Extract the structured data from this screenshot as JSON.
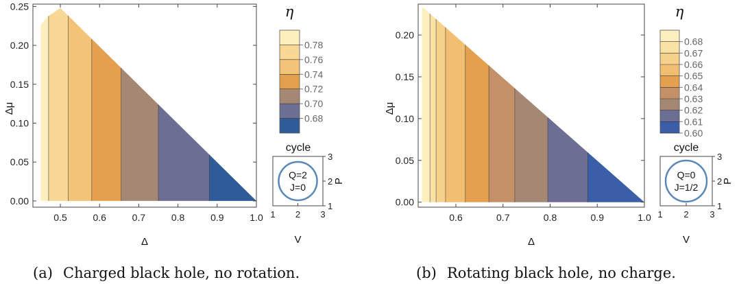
{
  "chart_data": [
    {
      "type": "contour",
      "panel_label": "(a)",
      "caption": "Charged black hole, no rotation.",
      "xlabel": "Δ",
      "ylabel": "Δμ",
      "xlim": [
        0.43,
        1.0
      ],
      "ylim": [
        -0.008,
        0.253
      ],
      "x_ticks": [
        "0.5",
        "0.6",
        "0.7",
        "0.8",
        "0.9",
        "1.0"
      ],
      "y_ticks": [
        "0.00",
        "0.05",
        "0.10",
        "0.15",
        "0.20",
        "0.25"
      ],
      "boundary": [
        [
          0.45,
          0.0
        ],
        [
          0.45,
          0.226
        ],
        [
          0.465,
          0.236
        ],
        [
          0.5,
          0.248
        ],
        [
          1.0,
          0.0
        ]
      ],
      "contour_x": [
        0.47,
        0.52,
        0.58,
        0.655,
        0.75,
        0.88
      ],
      "band_colors": [
        "#fdf0be",
        "#f8d894",
        "#f3c377",
        "#e4a04e",
        "#a58874",
        "#6c6f93",
        "#2f5b98"
      ],
      "legend": {
        "title": "η",
        "labels": [
          "0.78",
          "0.76",
          "0.74",
          "0.72",
          "0.70",
          "0.68"
        ],
        "colors": [
          "#fdf0be",
          "#f8d894",
          "#f3c377",
          "#e4a04e",
          "#a58874",
          "#6c6f93",
          "#2f5b98"
        ]
      },
      "inset": {
        "title": "cycle",
        "xlabel": "V",
        "ylabel": "P",
        "x_ticks": [
          "1",
          "2",
          "3"
        ],
        "y_ticks": [
          "1",
          "2",
          "3"
        ],
        "lines": [
          "Q=2",
          "J=0"
        ]
      }
    },
    {
      "type": "contour",
      "panel_label": "(b)",
      "caption": "Rotating black hole, no charge.",
      "xlabel": "Δ",
      "ylabel": "Δμ",
      "xlim": [
        0.52,
        1.0
      ],
      "ylim": [
        -0.006,
        0.237
      ],
      "x_ticks": [
        "0.6",
        "0.7",
        "0.8",
        "0.9",
        "1.0"
      ],
      "y_ticks": [
        "0.00",
        "0.05",
        "0.10",
        "0.15",
        "0.20"
      ],
      "boundary": [
        [
          0.528,
          0.0
        ],
        [
          0.528,
          0.234
        ],
        [
          1.0,
          0.0
        ]
      ],
      "contour_x": [
        0.545,
        0.558,
        0.578,
        0.62,
        0.67,
        0.725,
        0.795,
        0.88
      ],
      "band_colors": [
        "#fdf0be",
        "#fae2a5",
        "#f6d18c",
        "#f1be72",
        "#e4a04e",
        "#c49067",
        "#a58874",
        "#6c6f93",
        "#3a5ea8"
      ],
      "legend": {
        "title": "η",
        "labels": [
          "0.68",
          "0.67",
          "0.66",
          "0.65",
          "0.64",
          "0.63",
          "0.62",
          "0.61",
          "0.60"
        ],
        "colors": [
          "#fdf0be",
          "#fae2a5",
          "#f6d18c",
          "#f1be72",
          "#e4a04e",
          "#c49067",
          "#a58874",
          "#6c6f93",
          "#3a5ea8"
        ]
      },
      "inset": {
        "title": "cycle",
        "xlabel": "V",
        "ylabel": "P",
        "x_ticks": [
          "1",
          "2",
          "3"
        ],
        "y_ticks": [
          "1",
          "2",
          "3"
        ],
        "lines": [
          "Q=0",
          "J=1/2"
        ]
      }
    }
  ]
}
